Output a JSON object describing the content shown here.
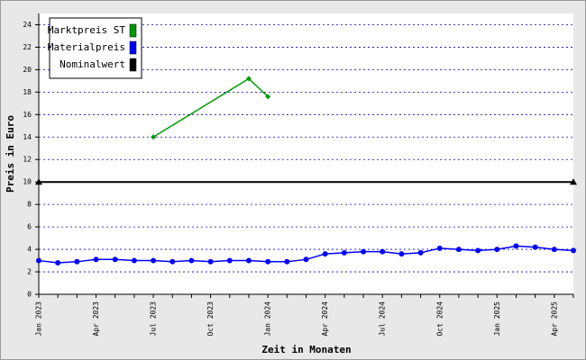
{
  "chart_data": {
    "type": "line",
    "x_label": "Zeit in Monaten",
    "y_label": "Preis in Euro",
    "categories": [
      "Jan 2023",
      null,
      null,
      "Apr 2023",
      null,
      null,
      "Jul 2023",
      null,
      null,
      "Oct 2023",
      null,
      null,
      "Jan 2024",
      null,
      null,
      "Apr 2024",
      null,
      null,
      "Jul 2024",
      null,
      null,
      "Oct 2024",
      null,
      null,
      "Jan 2025",
      null,
      null,
      "Apr 2025",
      null
    ],
    "series": [
      {
        "name": "Marktpreis ST",
        "color": "#009900",
        "marker": "diamond",
        "values": [
          null,
          null,
          null,
          null,
          null,
          null,
          14.0,
          null,
          null,
          null,
          null,
          19.2,
          17.6,
          null,
          null,
          null,
          null,
          null,
          null,
          null,
          null,
          null,
          null,
          null,
          null,
          null,
          null,
          null,
          null
        ]
      },
      {
        "name": "Materialpreis",
        "color": "#0000ff",
        "marker": "circle",
        "values": [
          3.0,
          2.8,
          2.9,
          3.1,
          3.1,
          3.0,
          3.0,
          2.9,
          3.0,
          2.9,
          3.0,
          3.0,
          2.9,
          2.9,
          3.1,
          3.6,
          3.7,
          3.8,
          3.8,
          3.6,
          3.7,
          4.1,
          4.0,
          3.9,
          4.0,
          4.3,
          4.2,
          4.0,
          3.9
        ]
      },
      {
        "name": "Nominalwert",
        "color": "#000000",
        "marker": "triangle",
        "values": [
          10,
          null,
          null,
          null,
          null,
          null,
          null,
          null,
          null,
          null,
          null,
          null,
          null,
          null,
          null,
          null,
          null,
          null,
          null,
          null,
          null,
          null,
          null,
          null,
          null,
          null,
          null,
          null,
          10
        ]
      }
    ],
    "connect_gaps": true,
    "ylim": [
      0,
      25
    ],
    "yticks": [
      0,
      2,
      4,
      6,
      8,
      10,
      12,
      14,
      16,
      18,
      20,
      22,
      24
    ],
    "grid": true,
    "legend": "top-left"
  }
}
